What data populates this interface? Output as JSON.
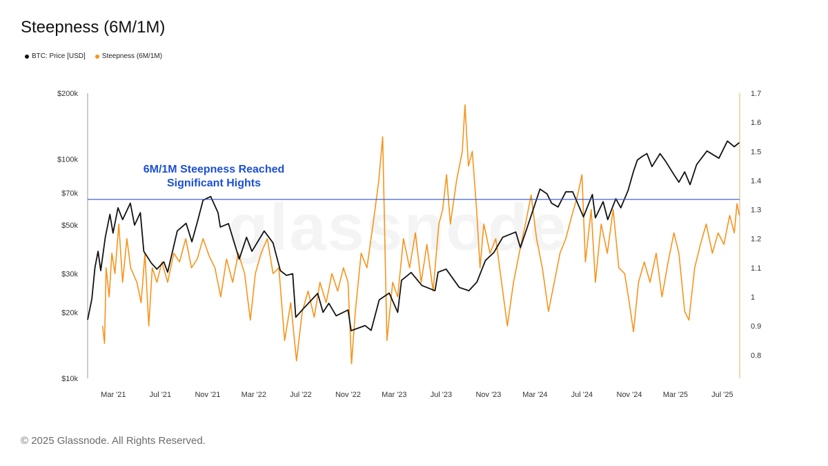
{
  "page": {
    "title": "Steepness (6M/1M)",
    "footer": "© 2025 Glassnode. All Rights Reserved.",
    "watermark": "glassnode"
  },
  "chart_data": {
    "type": "line",
    "title": "Steepness (6M/1M)",
    "legend_position": "top-left",
    "grid": true,
    "colors": {
      "price": "#111111",
      "steepness": "#f7931a",
      "threshold": "#2f55c9",
      "annotation": "#1c4fd6"
    },
    "x_ticks": [
      "Mar '21",
      "Jul '21",
      "Nov '21",
      "Mar '22",
      "Jul '22",
      "Nov '22",
      "Mar '23",
      "Jul '23",
      "Nov '23",
      "Mar '24",
      "Jul '24",
      "Nov '24",
      "Mar '25",
      "Jul '25"
    ],
    "x_range": [
      "2020-12-24",
      "2025-08-15"
    ],
    "y_left": {
      "scale": "log",
      "range": [
        10000,
        200000
      ],
      "tick_values": [
        10000,
        20000,
        30000,
        50000,
        70000,
        100000,
        200000
      ],
      "tick_labels": [
        "$10k",
        "$20k",
        "$30k",
        "$50k",
        "$70k",
        "$100k",
        "$200k"
      ]
    },
    "y_right": {
      "scale": "linear",
      "range": [
        0.72,
        1.7
      ],
      "tick_values": [
        0.8,
        0.9,
        1,
        1.1,
        1.2,
        1.3,
        1.4,
        1.5,
        1.6,
        1.7
      ],
      "tick_labels": [
        "0.8",
        "0.9",
        "1",
        "1.1",
        "1.2",
        "1.3",
        "1.4",
        "1.5",
        "1.6",
        "1.7"
      ]
    },
    "threshold": {
      "value": 1.335,
      "axis": "right"
    },
    "annotation": {
      "line1": "6M/1M Steepness Reached",
      "line2": "Significant Hights"
    },
    "series": [
      {
        "name": "BTC: Price [USD]",
        "axis": "left",
        "points": [
          [
            "2020-12-24",
            18500
          ],
          [
            "2021-01-04",
            23000
          ],
          [
            "2021-01-12",
            32000
          ],
          [
            "2021-01-20",
            38000
          ],
          [
            "2021-01-27",
            31000
          ],
          [
            "2021-02-08",
            44000
          ],
          [
            "2021-02-20",
            56000
          ],
          [
            "2021-02-28",
            46000
          ],
          [
            "2021-03-13",
            60000
          ],
          [
            "2021-03-25",
            53000
          ],
          [
            "2021-04-14",
            63000
          ],
          [
            "2021-04-25",
            50000
          ],
          [
            "2021-05-10",
            57000
          ],
          [
            "2021-05-19",
            38000
          ],
          [
            "2021-06-08",
            33500
          ],
          [
            "2021-06-22",
            31500
          ],
          [
            "2021-07-10",
            34000
          ],
          [
            "2021-07-20",
            30500
          ],
          [
            "2021-08-14",
            47000
          ],
          [
            "2021-09-06",
            51000
          ],
          [
            "2021-09-21",
            42000
          ],
          [
            "2021-10-05",
            51500
          ],
          [
            "2021-10-20",
            65000
          ],
          [
            "2021-11-09",
            67500
          ],
          [
            "2021-11-28",
            57000
          ],
          [
            "2021-12-04",
            49000
          ],
          [
            "2021-12-25",
            50800
          ],
          [
            "2022-01-22",
            35000
          ],
          [
            "2022-02-10",
            44000
          ],
          [
            "2022-02-24",
            38000
          ],
          [
            "2022-03-28",
            47000
          ],
          [
            "2022-04-20",
            41500
          ],
          [
            "2022-05-09",
            31000
          ],
          [
            "2022-05-25",
            29500
          ],
          [
            "2022-06-10",
            30000
          ],
          [
            "2022-06-18",
            19000
          ],
          [
            "2022-07-10",
            21000
          ],
          [
            "2022-08-14",
            24400
          ],
          [
            "2022-08-28",
            20000
          ],
          [
            "2022-09-12",
            22000
          ],
          [
            "2022-10-01",
            19300
          ],
          [
            "2022-11-01",
            20500
          ],
          [
            "2022-11-09",
            16500
          ],
          [
            "2022-12-15",
            17400
          ],
          [
            "2022-12-31",
            16550
          ],
          [
            "2023-01-21",
            22800
          ],
          [
            "2023-02-16",
            24500
          ],
          [
            "2023-03-10",
            20000
          ],
          [
            "2023-03-20",
            28000
          ],
          [
            "2023-04-14",
            30400
          ],
          [
            "2023-05-12",
            26500
          ],
          [
            "2023-06-15",
            25100
          ],
          [
            "2023-06-23",
            30500
          ],
          [
            "2023-07-14",
            31500
          ],
          [
            "2023-08-17",
            26000
          ],
          [
            "2023-09-11",
            25100
          ],
          [
            "2023-10-02",
            27500
          ],
          [
            "2023-10-24",
            34500
          ],
          [
            "2023-11-15",
            37500
          ],
          [
            "2023-12-08",
            44000
          ],
          [
            "2024-01-11",
            46500
          ],
          [
            "2024-01-23",
            39500
          ],
          [
            "2024-02-15",
            52000
          ],
          [
            "2024-03-14",
            73000
          ],
          [
            "2024-04-01",
            69500
          ],
          [
            "2024-04-13",
            63000
          ],
          [
            "2024-04-30",
            60500
          ],
          [
            "2024-05-20",
            71000
          ],
          [
            "2024-06-07",
            71000
          ],
          [
            "2024-07-05",
            54500
          ],
          [
            "2024-07-28",
            69000
          ],
          [
            "2024-08-05",
            54000
          ],
          [
            "2024-08-25",
            64000
          ],
          [
            "2024-09-06",
            53000
          ],
          [
            "2024-09-27",
            66000
          ],
          [
            "2024-10-10",
            60000
          ],
          [
            "2024-10-29",
            72000
          ],
          [
            "2024-11-12",
            88000
          ],
          [
            "2024-11-22",
            99000
          ],
          [
            "2024-12-05",
            103000
          ],
          [
            "2024-12-17",
            106000
          ],
          [
            "2024-12-30",
            92500
          ],
          [
            "2025-01-20",
            106000
          ],
          [
            "2025-02-03",
            98000
          ],
          [
            "2025-02-27",
            84000
          ],
          [
            "2025-03-10",
            78500
          ],
          [
            "2025-03-25",
            87500
          ],
          [
            "2025-04-08",
            76500
          ],
          [
            "2025-04-25",
            94500
          ],
          [
            "2025-05-22",
            109000
          ],
          [
            "2025-06-22",
            101000
          ],
          [
            "2025-07-14",
            121000
          ],
          [
            "2025-08-01",
            114000
          ],
          [
            "2025-08-14",
            119000
          ]
        ]
      },
      {
        "name": "Steepness (6M/1M)",
        "axis": "right",
        "points": [
          [
            "2021-02-01",
            0.9
          ],
          [
            "2021-02-06",
            0.84
          ],
          [
            "2021-02-10",
            1.1
          ],
          [
            "2021-02-18",
            1.0
          ],
          [
            "2021-02-25",
            1.15
          ],
          [
            "2021-03-05",
            1.08
          ],
          [
            "2021-03-15",
            1.25
          ],
          [
            "2021-03-25",
            1.05
          ],
          [
            "2021-04-05",
            1.2
          ],
          [
            "2021-04-15",
            1.1
          ],
          [
            "2021-05-01",
            1.05
          ],
          [
            "2021-05-12",
            0.98
          ],
          [
            "2021-05-22",
            1.15
          ],
          [
            "2021-06-01",
            0.9
          ],
          [
            "2021-06-10",
            1.1
          ],
          [
            "2021-06-22",
            1.05
          ],
          [
            "2021-07-05",
            1.12
          ],
          [
            "2021-07-20",
            1.05
          ],
          [
            "2021-08-05",
            1.15
          ],
          [
            "2021-08-20",
            1.12
          ],
          [
            "2021-09-05",
            1.2
          ],
          [
            "2021-09-20",
            1.1
          ],
          [
            "2021-10-05",
            1.13
          ],
          [
            "2021-10-20",
            1.2
          ],
          [
            "2021-11-05",
            1.14
          ],
          [
            "2021-11-20",
            1.1
          ],
          [
            "2021-12-05",
            1.0
          ],
          [
            "2021-12-20",
            1.13
          ],
          [
            "2022-01-05",
            1.05
          ],
          [
            "2022-01-20",
            1.15
          ],
          [
            "2022-02-05",
            1.08
          ],
          [
            "2022-02-20",
            0.92
          ],
          [
            "2022-03-05",
            1.08
          ],
          [
            "2022-03-20",
            1.15
          ],
          [
            "2022-04-05",
            1.2
          ],
          [
            "2022-04-20",
            1.08
          ],
          [
            "2022-05-05",
            1.1
          ],
          [
            "2022-05-20",
            0.85
          ],
          [
            "2022-06-05",
            0.98
          ],
          [
            "2022-06-20",
            0.78
          ],
          [
            "2022-07-05",
            0.95
          ],
          [
            "2022-07-20",
            1.02
          ],
          [
            "2022-08-05",
            0.93
          ],
          [
            "2022-08-20",
            1.05
          ],
          [
            "2022-09-05",
            0.98
          ],
          [
            "2022-09-20",
            1.08
          ],
          [
            "2022-10-05",
            1.02
          ],
          [
            "2022-10-20",
            1.1
          ],
          [
            "2022-11-01",
            1.05
          ],
          [
            "2022-11-10",
            0.77
          ],
          [
            "2022-11-20",
            0.95
          ],
          [
            "2022-12-05",
            1.15
          ],
          [
            "2022-12-20",
            1.1
          ],
          [
            "2023-01-05",
            1.25
          ],
          [
            "2023-01-20",
            1.4
          ],
          [
            "2023-01-30",
            1.55
          ],
          [
            "2023-02-10",
            0.85
          ],
          [
            "2023-02-25",
            1.05
          ],
          [
            "2023-03-10",
            1.0
          ],
          [
            "2023-03-25",
            1.2
          ],
          [
            "2023-04-10",
            1.1
          ],
          [
            "2023-04-25",
            1.22
          ],
          [
            "2023-05-10",
            1.05
          ],
          [
            "2023-05-25",
            1.18
          ],
          [
            "2023-06-10",
            1.02
          ],
          [
            "2023-06-25",
            1.25
          ],
          [
            "2023-07-05",
            1.3
          ],
          [
            "2023-07-15",
            1.42
          ],
          [
            "2023-07-25",
            1.25
          ],
          [
            "2023-08-10",
            1.4
          ],
          [
            "2023-08-25",
            1.5
          ],
          [
            "2023-09-01",
            1.66
          ],
          [
            "2023-09-10",
            1.45
          ],
          [
            "2023-09-20",
            1.5
          ],
          [
            "2023-10-01",
            1.3
          ],
          [
            "2023-10-10",
            1.1
          ],
          [
            "2023-10-20",
            1.25
          ],
          [
            "2023-11-05",
            1.15
          ],
          [
            "2023-11-20",
            1.2
          ],
          [
            "2023-12-05",
            1.05
          ],
          [
            "2023-12-20",
            0.9
          ],
          [
            "2024-01-05",
            1.05
          ],
          [
            "2024-01-20",
            1.15
          ],
          [
            "2024-02-05",
            1.25
          ],
          [
            "2024-02-20",
            1.35
          ],
          [
            "2024-03-05",
            1.2
          ],
          [
            "2024-03-20",
            1.1
          ],
          [
            "2024-04-05",
            0.95
          ],
          [
            "2024-04-20",
            1.05
          ],
          [
            "2024-05-05",
            1.15
          ],
          [
            "2024-05-20",
            1.2
          ],
          [
            "2024-06-05",
            1.28
          ],
          [
            "2024-06-20",
            1.35
          ],
          [
            "2024-07-01",
            1.42
          ],
          [
            "2024-07-10",
            1.12
          ],
          [
            "2024-07-25",
            1.3
          ],
          [
            "2024-08-05",
            1.05
          ],
          [
            "2024-08-20",
            1.25
          ],
          [
            "2024-09-05",
            1.15
          ],
          [
            "2024-09-20",
            1.3
          ],
          [
            "2024-10-05",
            1.1
          ],
          [
            "2024-10-20",
            1.08
          ],
          [
            "2024-11-01",
            0.98
          ],
          [
            "2024-11-12",
            0.88
          ],
          [
            "2024-11-25",
            1.05
          ],
          [
            "2024-12-10",
            1.12
          ],
          [
            "2024-12-25",
            1.05
          ],
          [
            "2025-01-10",
            1.15
          ],
          [
            "2025-01-25",
            1.0
          ],
          [
            "2025-02-10",
            1.12
          ],
          [
            "2025-02-25",
            1.22
          ],
          [
            "2025-03-10",
            1.15
          ],
          [
            "2025-03-25",
            0.95
          ],
          [
            "2025-04-05",
            0.92
          ],
          [
            "2025-04-20",
            1.1
          ],
          [
            "2025-05-05",
            1.18
          ],
          [
            "2025-05-20",
            1.25
          ],
          [
            "2025-06-05",
            1.15
          ],
          [
            "2025-06-20",
            1.22
          ],
          [
            "2025-07-05",
            1.18
          ],
          [
            "2025-07-20",
            1.28
          ],
          [
            "2025-08-01",
            1.22
          ],
          [
            "2025-08-08",
            1.32
          ],
          [
            "2025-08-14",
            1.28
          ]
        ]
      }
    ]
  }
}
